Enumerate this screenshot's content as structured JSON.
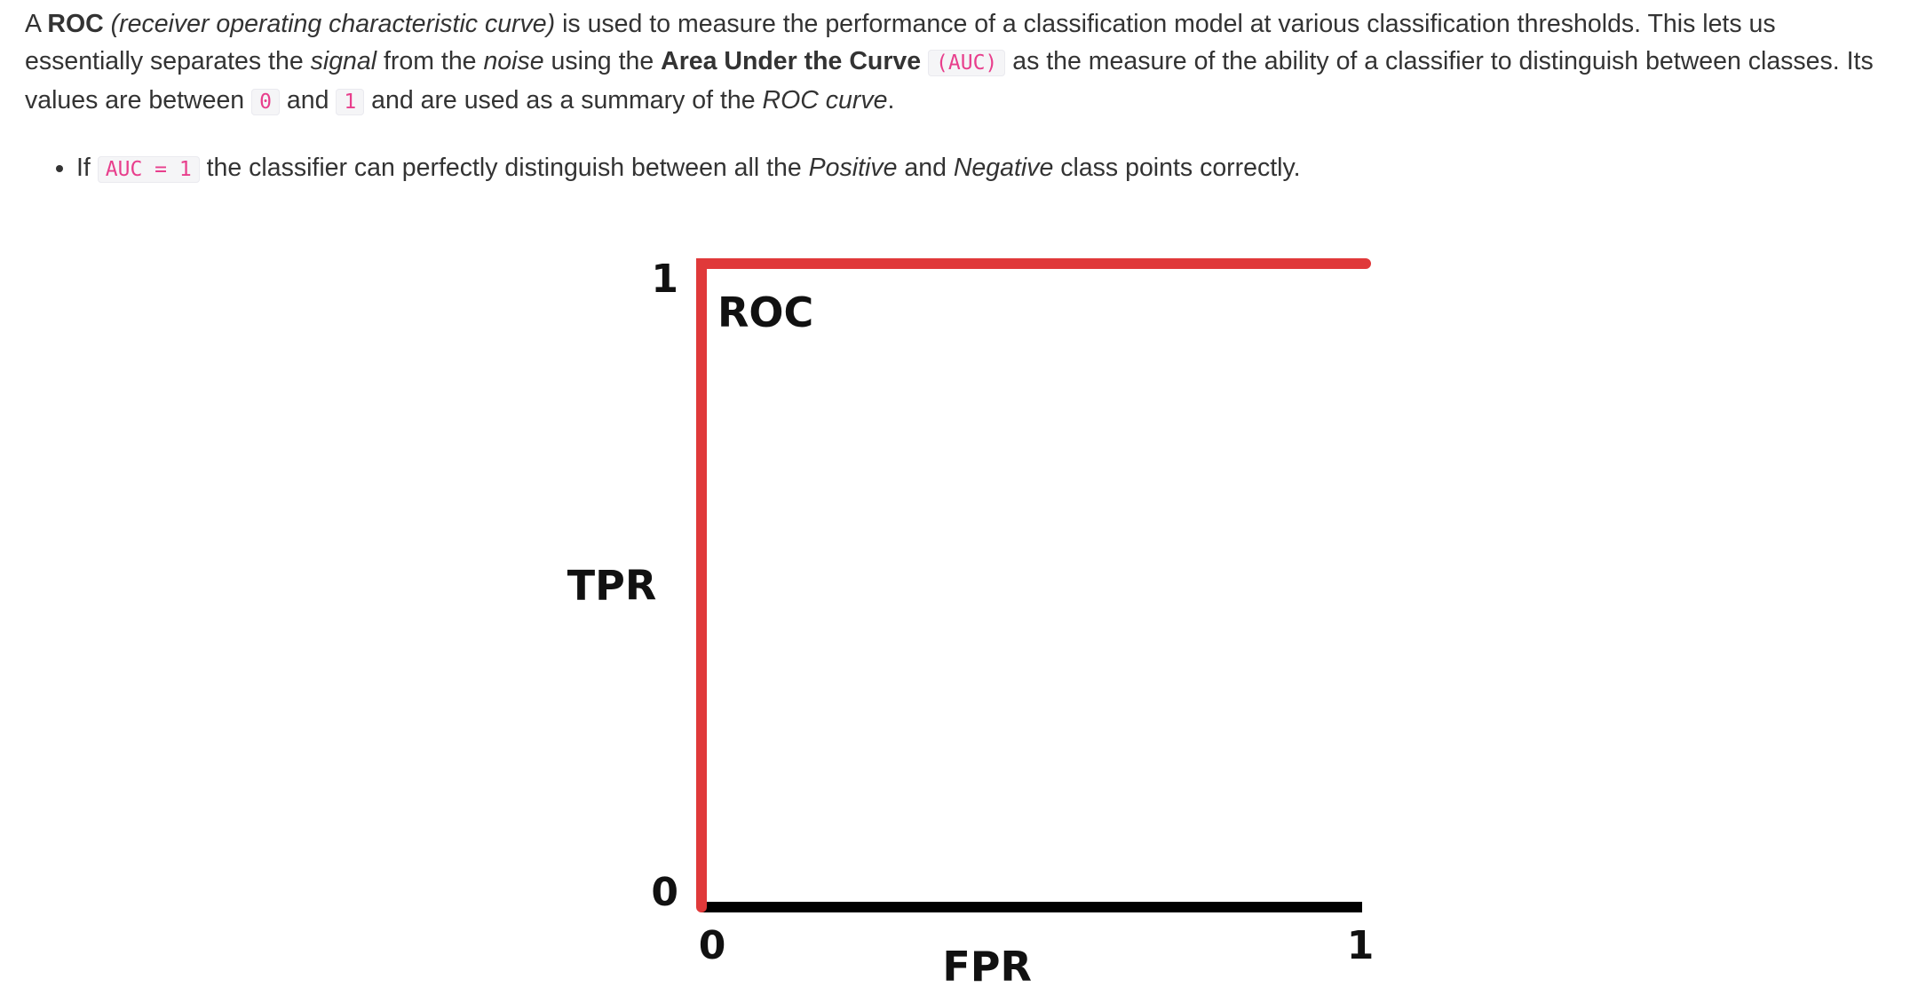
{
  "paragraph": {
    "s1": "A ",
    "roc_bold": "ROC",
    "s2": " ",
    "roc_full_italic": "(receiver operating characteristic curve)",
    "s3": " is used to measure the performance of a classification model at various classification thresholds. This lets us essentially separates the ",
    "signal_italic": "signal",
    "s4": " from the ",
    "noise_italic": "noise",
    "s5": " using the ",
    "auc_bold": "Area Under the Curve",
    "s6": " ",
    "auc_code": "(AUC)",
    "s7": " as the measure of the ability of a classifier to distinguish between classes. Its values are between ",
    "zero_code": "0",
    "s8": " and ",
    "one_code": "1",
    "s9": " and are used as a summary of the ",
    "roc_curve_italic": "ROC curve",
    "s10": "."
  },
  "bullet": {
    "b1": "If ",
    "code": "AUC = 1",
    "b2": " the classifier can perfectly distinguish between all the ",
    "positive_italic": "Positive",
    "b3": " and ",
    "negative_italic": "Negative",
    "b4": " class points correctly."
  },
  "chart_data": {
    "type": "line",
    "title": "",
    "xlabel": "FPR",
    "ylabel": "TPR",
    "xlim": [
      0,
      1
    ],
    "ylim": [
      0,
      1
    ],
    "x_ticks": [
      "0",
      "1"
    ],
    "y_ticks": [
      "0",
      "1"
    ],
    "series": [
      {
        "name": "ROC",
        "color": "#e0393a",
        "x": [
          0,
          0,
          1
        ],
        "y": [
          0,
          1,
          1
        ]
      }
    ],
    "axis_color": "#000000",
    "grid": false
  }
}
